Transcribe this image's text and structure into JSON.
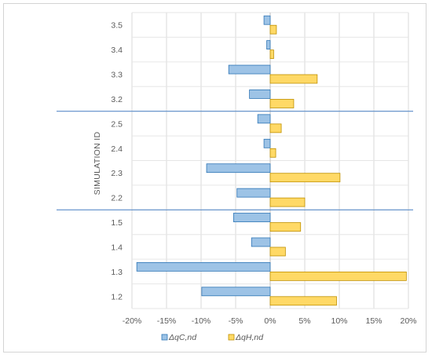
{
  "chart_data": {
    "type": "bar",
    "orientation": "horizontal",
    "ylabel": "SIMULATION ID",
    "xlabel": "",
    "categories": [
      "3.5",
      "3.4",
      "3.3",
      "3.2",
      "2.5",
      "2.4",
      "2.3",
      "2.2",
      "1.5",
      "1.4",
      "1.3",
      "1.2"
    ],
    "group_separators_after": [
      "3.2",
      "2.2"
    ],
    "xlim": [
      -20,
      20
    ],
    "x_ticks": [
      -20,
      -15,
      -10,
      -5,
      0,
      5,
      10,
      15,
      20
    ],
    "x_tick_labels": [
      "-20%",
      "-15%",
      "-10%",
      "-5%",
      "0%",
      "5%",
      "10%",
      "15%",
      "20%"
    ],
    "grid": "vertical",
    "legend_position": "bottom",
    "series": [
      {
        "name": "ΔqC,nd",
        "color": "#9dc3e6",
        "edge_color": "#2e75b6",
        "values": [
          -0.9,
          -0.5,
          -6.0,
          -3.0,
          -1.8,
          -0.9,
          -9.2,
          -4.8,
          -5.3,
          -2.7,
          -19.3,
          -9.9
        ]
      },
      {
        "name": "ΔqH,nd",
        "color": "#ffd966",
        "edge_color": "#bf9000",
        "values": [
          0.9,
          0.5,
          6.8,
          3.4,
          1.6,
          0.8,
          10.1,
          5.0,
          4.4,
          2.2,
          19.7,
          9.6
        ]
      }
    ]
  }
}
